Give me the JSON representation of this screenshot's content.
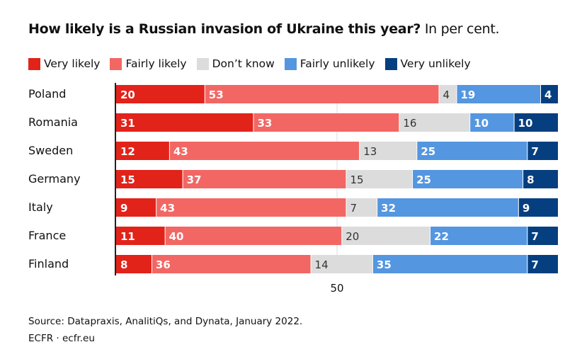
{
  "title": "How likely is a Russian invasion of Ukraine this year?",
  "subtitle": "In per cent.",
  "source": "Source: Datapraxis, AnalitiQs, and Dynata, January 2022.",
  "credit": "ECFR · ecfr.eu",
  "chart_data": {
    "type": "bar",
    "orientation": "horizontal",
    "stacked": true,
    "categories": [
      "Poland",
      "Romania",
      "Sweden",
      "Germany",
      "Italy",
      "France",
      "Finland"
    ],
    "series": [
      {
        "name": "Very likely",
        "color": "#e2231a",
        "label_color": "#ffffff",
        "values": [
          20,
          31,
          12,
          15,
          9,
          11,
          8
        ]
      },
      {
        "name": "Fairly likely",
        "color": "#f26764",
        "label_color": "#ffffff",
        "values": [
          53,
          33,
          43,
          37,
          43,
          40,
          36
        ]
      },
      {
        "name": "Don’t know",
        "color": "#dcdcdc",
        "label_color": "#333333",
        "values": [
          4,
          16,
          13,
          15,
          7,
          20,
          14
        ]
      },
      {
        "name": "Fairly unlikely",
        "color": "#5496e0",
        "label_color": "#ffffff",
        "values": [
          19,
          10,
          25,
          25,
          32,
          22,
          35
        ]
      },
      {
        "name": "Very unlikely",
        "color": "#063f80",
        "label_color": "#ffffff",
        "values": [
          4,
          10,
          7,
          8,
          9,
          7,
          7
        ]
      }
    ],
    "xlim": [
      0,
      100
    ],
    "xticks": [
      50
    ],
    "grid": "vertical line at 50",
    "legend": "top",
    "xlabel": "",
    "ylabel": ""
  }
}
